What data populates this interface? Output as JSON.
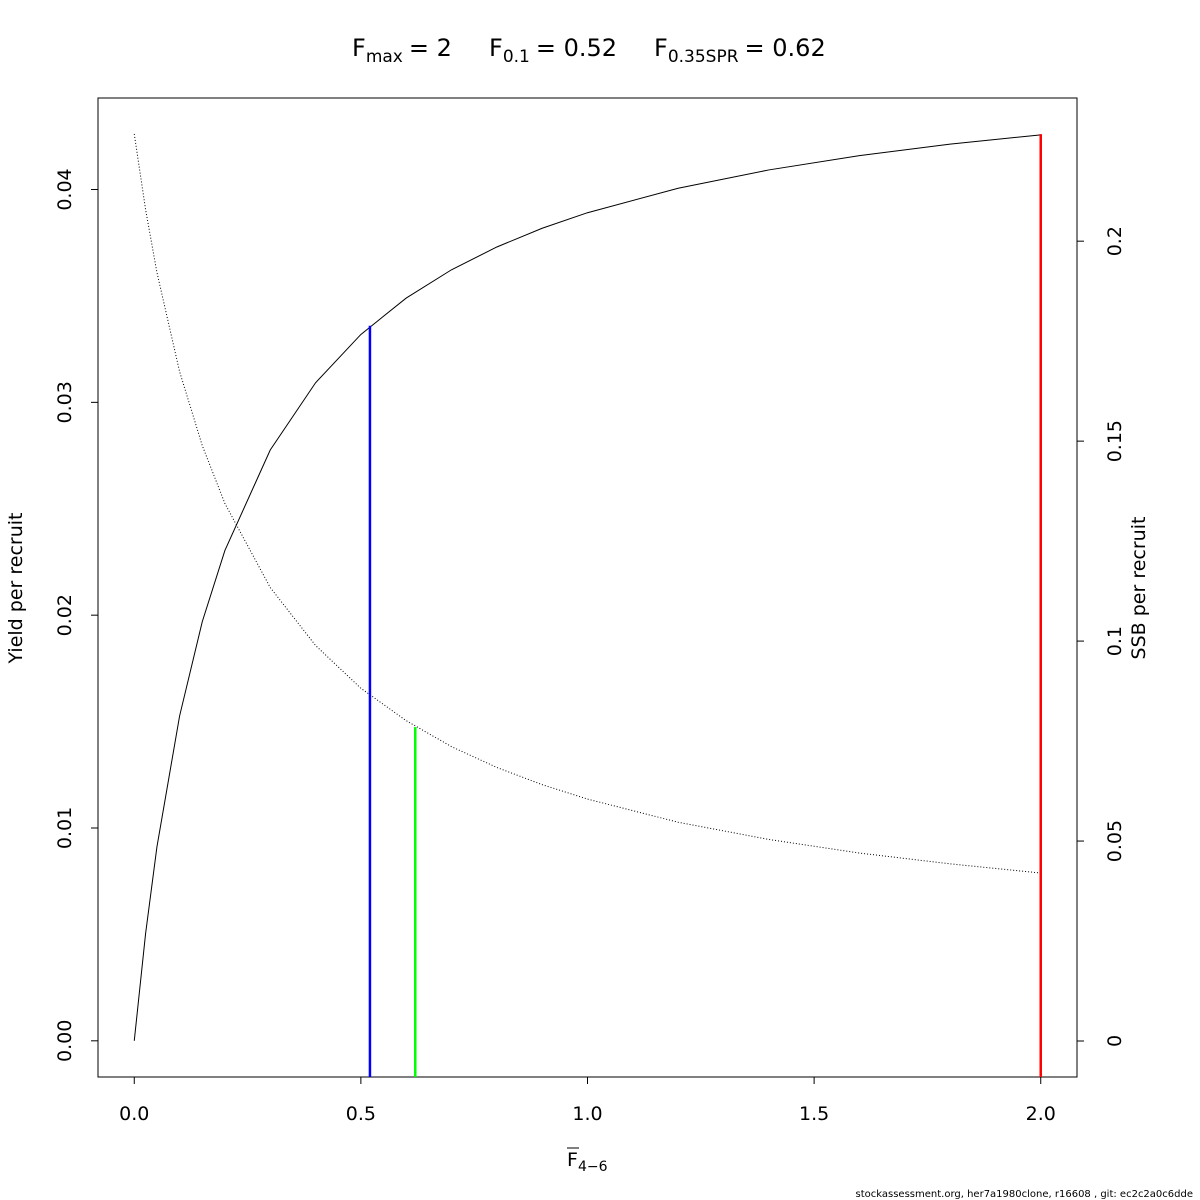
{
  "chart_data": {
    "type": "line",
    "title_parts": [
      {
        "symbol": "F",
        "subscript": "max",
        "label": "= 2",
        "value": 2,
        "color": "#ff0000",
        "y_end": 0.0426
      },
      {
        "symbol": "F",
        "subscript": "0.1",
        "label": "= 0.52",
        "value": 0.52,
        "color": "#0000ff",
        "y_end": 0.0336
      },
      {
        "symbol": "F",
        "subscript": "0.35SPR",
        "label": "= 0.62",
        "value": 0.62,
        "color": "#00ff00",
        "y_end": 0.0785,
        "axis": "y2"
      }
    ],
    "x_label": {
      "symbol": "F",
      "subscript": "4−6"
    },
    "y_label": "Yield per recruit",
    "y2_label": "SSB per recruit",
    "footer": "stockassessment.org, her7a1980clone, r16608 , git: ec2c2a0c6dde",
    "x": [
      0,
      0.025,
      0.05,
      0.1,
      0.15,
      0.2,
      0.3,
      0.4,
      0.5,
      0.6,
      0.7,
      0.8,
      0.9,
      1.0,
      1.2,
      1.4,
      1.6,
      1.8,
      2.0
    ],
    "series": [
      {
        "color": "#000000",
        "line_style": "solid",
        "values": [
          0,
          0.00504,
          0.00911,
          0.01526,
          0.01969,
          0.02304,
          0.02776,
          0.03092,
          0.03319,
          0.0349,
          0.03623,
          0.0373,
          0.03818,
          0.03891,
          0.04006,
          0.04092,
          0.04159,
          0.04213,
          0.04257
        ]
      },
      {
        "color": "#000000",
        "line_style": "dotted",
        "axis": "y2",
        "values": [
          0.2268,
          0.2079,
          0.1922,
          0.1674,
          0.1489,
          0.1344,
          0.1134,
          0.0989,
          0.0882,
          0.0801,
          0.0736,
          0.0684,
          0.0641,
          0.0605,
          0.0547,
          0.0504,
          0.047,
          0.0443,
          0.042
        ]
      }
    ],
    "xlim": [
      -0.08,
      2.08
    ],
    "xticks": [
      {
        "value": 0,
        "label": "0.0"
      },
      {
        "value": 0.5,
        "label": "0.5"
      },
      {
        "value": 1,
        "label": "1.0"
      },
      {
        "value": 1.5,
        "label": "1.5"
      },
      {
        "value": 2,
        "label": "2.0"
      }
    ],
    "ylim": [
      -0.0017,
      0.0443
    ],
    "yticks": [
      {
        "value": 0,
        "label": "0.00"
      },
      {
        "value": 0.01,
        "label": "0.01"
      },
      {
        "value": 0.02,
        "label": "0.02"
      },
      {
        "value": 0.03,
        "label": "0.03"
      },
      {
        "value": 0.04,
        "label": "0.04"
      }
    ],
    "y2lim": [
      -0.009,
      0.2358
    ],
    "y2ticks": [
      0,
      0.05,
      0.1,
      0.15,
      0.2
    ]
  }
}
